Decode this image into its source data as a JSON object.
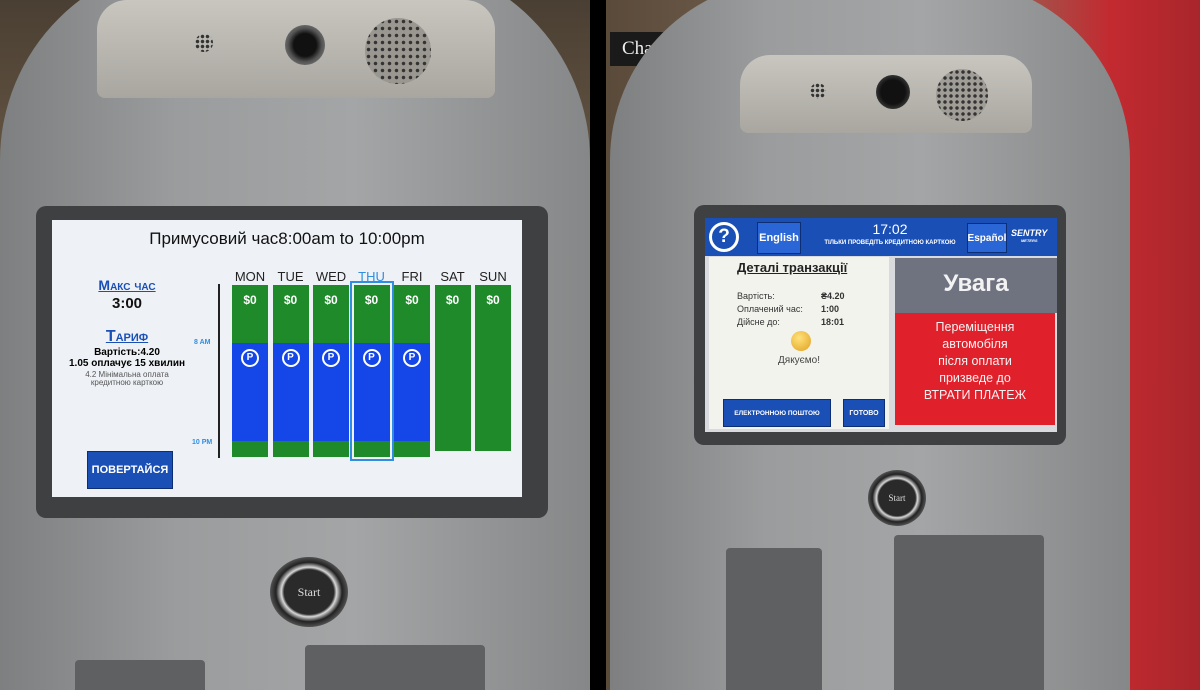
{
  "left_meter": {
    "title": "Примусовий час8:00am to 10:00pm",
    "max_time_label": "Макс час",
    "max_time_value": "3:00",
    "tariff_label": "Тариф",
    "tariff_lines": [
      "Вартість:4.20",
      "1.05 оплачує 15 хвилин",
      "4.2 Мінімальна оплата",
      "кредитною карткою"
    ],
    "axis_start": "8 AM",
    "axis_end": "10 PM",
    "days": [
      {
        "label": "MON",
        "price": "$0",
        "paid": true
      },
      {
        "label": "TUE",
        "price": "$0",
        "paid": true
      },
      {
        "label": "WED",
        "price": "$0",
        "paid": true
      },
      {
        "label": "THU",
        "price": "$0",
        "paid": true,
        "selected": true
      },
      {
        "label": "FRI",
        "price": "$0",
        "paid": true
      },
      {
        "label": "SAT",
        "price": "$0",
        "paid": false
      },
      {
        "label": "SUN",
        "price": "$0",
        "paid": false
      }
    ],
    "parking_icon": "P",
    "back_button": "ПОВЕРТАЙСЯ",
    "start_button": "Start",
    "colors": {
      "free": "#1f8a2a",
      "paid": "#1446e8",
      "selected": "#2f8ee0"
    }
  },
  "right_meter": {
    "help_icon": "?",
    "english_button": "English",
    "time": "17:02",
    "instruction": "ТІЛЬКИ ПРОВЕДІТЬ КРЕДИТНОЮ КАРТКОЮ",
    "espanol_button": "Español",
    "brand": "SENTRY",
    "brand_sub": "METERS",
    "details_title": "Деталі транзакції",
    "details": [
      {
        "label": "Вартість:",
        "value": "₴4.20"
      },
      {
        "label": "Оплачений час:",
        "value": "1:00"
      },
      {
        "label": "Дійсне до:",
        "value": "18:01"
      }
    ],
    "thanks": "Дякуємо!",
    "email_button": "ЕЛЕКТРОННОЮ ПОШТОЮ",
    "done_button": "ГОТОВО",
    "warning_title": "Увага",
    "warning_text": [
      "Переміщення",
      "автомобіля",
      "після оплати",
      "призведе до",
      "ВТРАТИ ПЛАТЕЖ"
    ],
    "start_button": "Start",
    "background_sign": "Chantal",
    "colors": {
      "header": "#1a4fb5",
      "warning": "#e0202a",
      "warning_header": "#6f7380"
    }
  }
}
